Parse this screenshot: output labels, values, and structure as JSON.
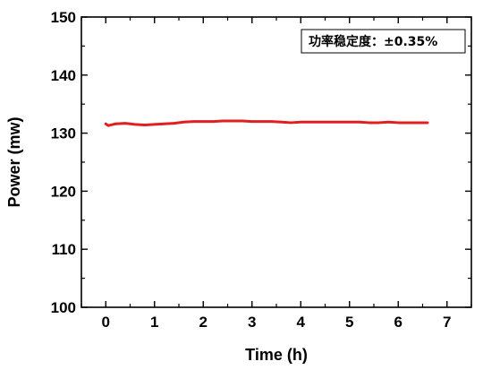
{
  "chart_data": {
    "type": "line",
    "title": "",
    "xlabel": "Time (h)",
    "ylabel": "Power (mw)",
    "xlim": [
      -0.5,
      7.5
    ],
    "ylim": [
      100,
      150
    ],
    "xticks": [
      0,
      1,
      2,
      3,
      4,
      5,
      6,
      7
    ],
    "yticks": [
      100,
      110,
      120,
      130,
      140,
      150
    ],
    "grid": false,
    "annotation": "功率稳定度：±0.35%",
    "series": [
      {
        "color": "#e02020",
        "x": [
          0.0,
          0.05,
          0.2,
          0.4,
          0.6,
          0.8,
          1.0,
          1.2,
          1.4,
          1.6,
          1.8,
          2.0,
          2.2,
          2.4,
          2.6,
          2.8,
          3.0,
          3.2,
          3.4,
          3.6,
          3.8,
          4.0,
          4.2,
          4.4,
          4.6,
          4.8,
          5.0,
          5.2,
          5.4,
          5.6,
          5.8,
          6.0,
          6.2,
          6.4,
          6.6
        ],
        "y": [
          131.6,
          131.3,
          131.6,
          131.7,
          131.5,
          131.4,
          131.5,
          131.6,
          131.7,
          131.9,
          132.0,
          132.0,
          132.0,
          132.1,
          132.1,
          132.1,
          132.0,
          132.0,
          132.0,
          131.9,
          131.8,
          131.9,
          131.9,
          131.9,
          131.9,
          131.9,
          131.9,
          131.9,
          131.8,
          131.8,
          131.9,
          131.8,
          131.8,
          131.8,
          131.8
        ]
      }
    ]
  }
}
